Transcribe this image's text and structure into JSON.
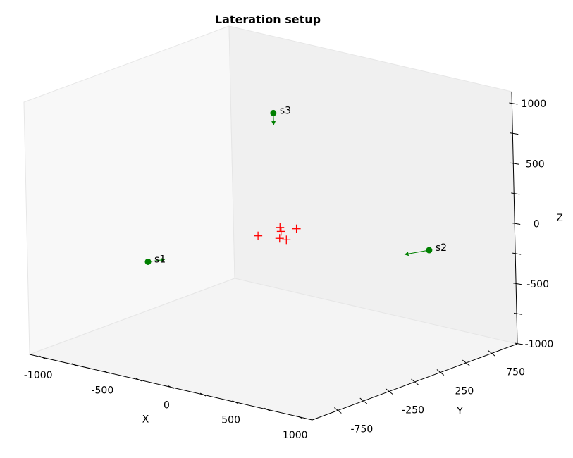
{
  "chart_data": {
    "type": "scatter",
    "projection": "3d",
    "title": "Lateration setup",
    "xlabel": "X",
    "ylabel": "Y",
    "zlabel": "Z",
    "xlim": [
      -1100,
      1100
    ],
    "ylim": [
      -1000,
      1000
    ],
    "zlim": [
      -1000,
      1100
    ],
    "x_ticks": [
      -1000,
      -500,
      0,
      500,
      1000
    ],
    "y_ticks": [
      -750,
      -250,
      250,
      750
    ],
    "z_ticks": [
      -1000,
      -500,
      0,
      500,
      1000
    ],
    "grid": false,
    "sensors": [
      {
        "label": "s1",
        "x": -400,
        "y": -700,
        "z": -150,
        "arrow_to": {
          "x": -350,
          "y": -600,
          "z": -150
        }
      },
      {
        "label": "s2",
        "x": 750,
        "y": 600,
        "z": -180,
        "arrow_to": {
          "x": 720,
          "y": 400,
          "z": -160
        }
      },
      {
        "label": "s3",
        "x": 0,
        "y": 50,
        "z": 950,
        "arrow_to": {
          "x": 0,
          "y": 50,
          "z": 850
        }
      }
    ],
    "targets": [
      {
        "x": 80,
        "y": 0,
        "z": 0
      },
      {
        "x": 40,
        "y": 40,
        "z": 10
      },
      {
        "x": 120,
        "y": 100,
        "z": 0
      },
      {
        "x": -20,
        "y": -100,
        "z": -30
      },
      {
        "x": 120,
        "y": 0,
        "z": -60
      },
      {
        "x": 100,
        "y": -40,
        "z": -40
      }
    ],
    "colors": {
      "sensor": "#008000",
      "target": "#ff0000",
      "pane_left": "#f8f8f8",
      "pane_right": "#f0f0f0",
      "pane_floor": "#f4f4f4",
      "pane_edge": "#e6e6e6",
      "axis_line": "#000000"
    }
  }
}
